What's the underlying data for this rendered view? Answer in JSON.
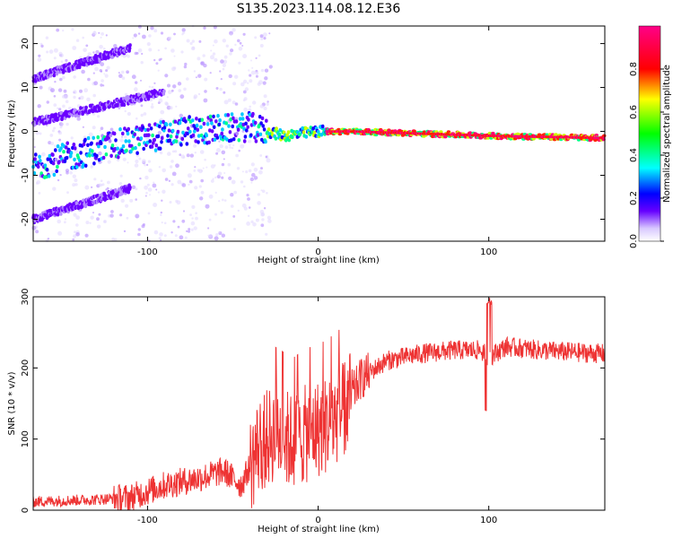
{
  "title": "S135.2023.114.08.12.E36",
  "chart_data": [
    {
      "type": "heatmap",
      "xlabel": "Height of straight line (km)",
      "ylabel": "Frequency (Hz)",
      "xlim": [
        -167,
        168
      ],
      "ylim": [
        -25,
        24
      ],
      "xticks": [
        -100,
        0,
        100
      ],
      "yticks": [
        20,
        10,
        0,
        -10,
        -20
      ],
      "colorbar": {
        "label": "Normalized spectral amplitude",
        "range": [
          0,
          1
        ],
        "ticks": [
          "0.0",
          "0.2",
          "0.4",
          "0.6",
          "0.8"
        ],
        "tick_values": [
          0,
          0.2,
          0.4,
          0.6,
          0.8
        ]
      },
      "ridges": [
        {
          "name": "main-carrier",
          "points": [
            [
              -167,
              -8
            ],
            [
              -120,
              -3
            ],
            [
              -80,
              0
            ],
            [
              -40,
              1
            ],
            [
              -20,
              -1
            ],
            [
              0,
              0
            ],
            [
              20,
              0
            ],
            [
              60,
              -0.5
            ],
            [
              100,
              -1
            ],
            [
              168,
              -1.5
            ]
          ]
        },
        {
          "name": "upper-line-1",
          "points": [
            [
              -167,
              12
            ],
            [
              -110,
              19
            ]
          ]
        },
        {
          "name": "upper-line-2",
          "points": [
            [
              -167,
              2
            ],
            [
              -90,
              9
            ]
          ]
        },
        {
          "name": "lower-line",
          "points": [
            [
              -167,
              -20
            ],
            [
              -110,
              -13
            ]
          ]
        }
      ]
    },
    {
      "type": "line",
      "xlabel": "Height of straight line (km)",
      "ylabel": "SNR (10 * v/v)",
      "xlim": [
        -167,
        168
      ],
      "ylim": [
        0,
        300
      ],
      "xticks": [
        -100,
        0,
        100
      ],
      "yticks": [
        0,
        100,
        200,
        300
      ],
      "series": [
        {
          "name": "SNR",
          "color": "#ee3333",
          "x": [
            -167,
            -130,
            -110,
            -90,
            -70,
            -55,
            -45,
            -35,
            -25,
            -15,
            -5,
            5,
            15,
            25,
            40,
            60,
            80,
            95,
            100,
            110,
            130,
            150,
            168
          ],
          "y": [
            12,
            15,
            18,
            35,
            45,
            55,
            35,
            90,
            110,
            95,
            110,
            120,
            140,
            185,
            210,
            220,
            225,
            225,
            215,
            230,
            225,
            222,
            220
          ]
        }
      ]
    }
  ]
}
